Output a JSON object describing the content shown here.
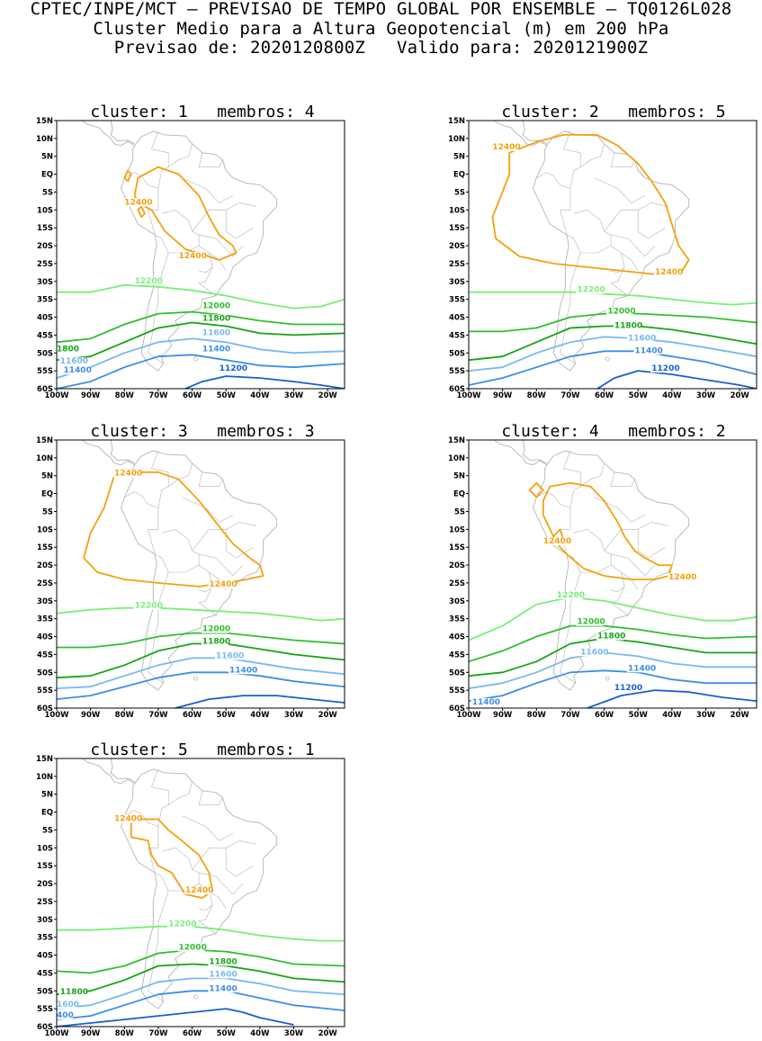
{
  "header": {
    "line1": "CPTEC/INPE/MCT — PREVISAO DE TEMPO GLOBAL POR ENSEMBLE — TQ0126L028",
    "line2": "Cluster Medio para a Altura Geopotencial (m) em 200 hPa",
    "line3": "Previsao de: 2020120800Z   Valido para: 2020121900Z"
  },
  "axes": {
    "lat_labels": [
      "15N",
      "10N",
      "5N",
      "EQ",
      "5S",
      "10S",
      "15S",
      "20S",
      "25S",
      "30S",
      "35S",
      "40S",
      "45S",
      "50S",
      "55S",
      "60S"
    ],
    "lon_labels": [
      "100W",
      "90W",
      "80W",
      "70W",
      "60W",
      "50W",
      "40W",
      "30W",
      "20W"
    ]
  },
  "colors": {
    "c12400": "#f5a00e",
    "c12200": "#78ef78",
    "c12000": "#2fbf2f",
    "c11800": "#16a516",
    "c11600": "#78b8f0",
    "c11400": "#3c8ee8",
    "c11200": "#1660d0",
    "coast": "#b4b4b4"
  },
  "panels": [
    {
      "title": "cluster: 1   membros: 4",
      "labels": {
        "l12400a": "12400",
        "l12400b": "12400",
        "l12200": "12200",
        "l12000": "12000",
        "l11800": "11800",
        "l11800b": "1800",
        "l11600": "11600",
        "l11600b": "11600",
        "l11400": "11400",
        "l11400b": "11400",
        "l11200": "11200"
      }
    },
    {
      "title": "cluster: 2   membros: 5",
      "labels": {
        "l12400a": "12400",
        "l12400b": "12400",
        "l12200": "12200",
        "l12000": "12000",
        "l11800": "11800",
        "l11600": "11600",
        "l11400": "11400",
        "l11200": "11200"
      }
    },
    {
      "title": "cluster: 3   membros: 3",
      "labels": {
        "l12400a": "12400",
        "l12400b": "12400",
        "l12200": "12200",
        "l12000": "12000",
        "l11800": "11800",
        "l11600": "11600",
        "l11400": "11400"
      }
    },
    {
      "title": "cluster: 4   membros: 2",
      "labels": {
        "l12400a": "12400",
        "l12400b": "12400",
        "l12200": "12200",
        "l12000": "12000",
        "l11800": "11800",
        "l11600": "11600",
        "l11400": "11400",
        "l11400b": "11400",
        "l11200": "11200"
      }
    },
    {
      "title": "cluster: 5   membros: 1",
      "labels": {
        "l12400a": "12400",
        "l12400b": "12400",
        "l12200": "12200",
        "l12000": "12000",
        "l11800": "11800",
        "l11800b": "11800",
        "l11600": "11600",
        "l11600b": "1600",
        "l11400": "11400",
        "l11400b": "400"
      }
    }
  ]
}
